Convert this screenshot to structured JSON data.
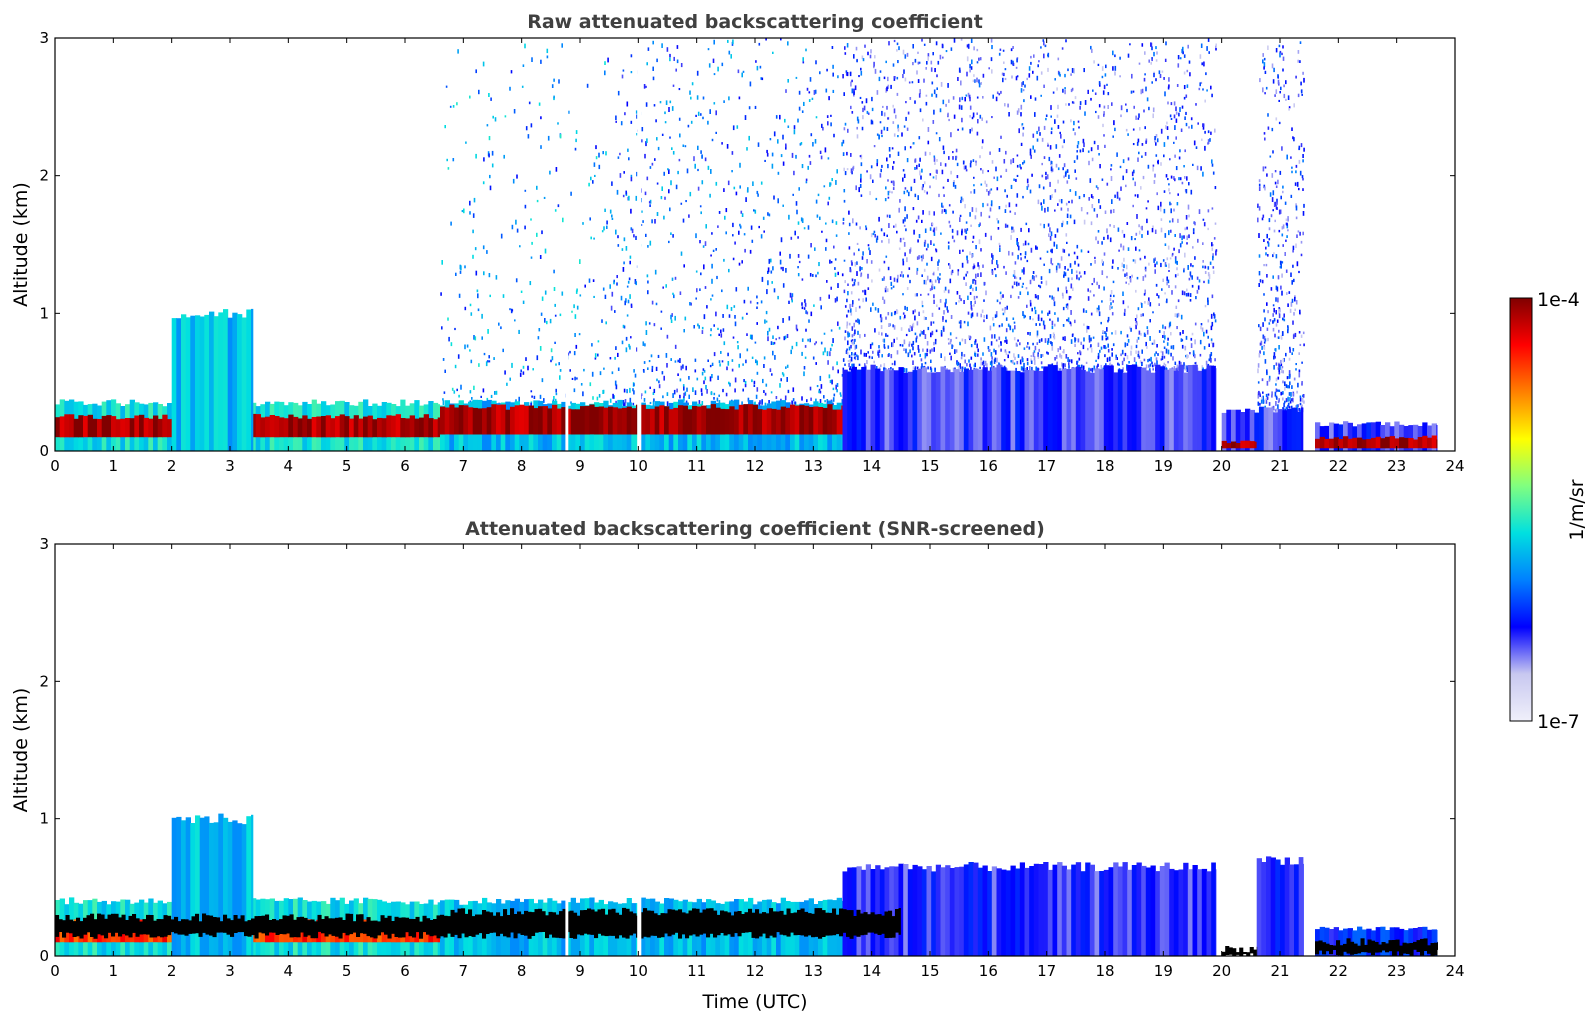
{
  "chart_data": [
    {
      "type": "heatmap",
      "title": "Raw attenuated backscattering coefficient",
      "xlabel": "",
      "ylabel": "Altitude (km)",
      "xlim": [
        0,
        24
      ],
      "ylim": [
        0,
        3
      ],
      "xticks": [
        "0",
        "1",
        "2",
        "3",
        "4",
        "5",
        "6",
        "7",
        "8",
        "9",
        "10",
        "11",
        "12",
        "13",
        "14",
        "15",
        "16",
        "17",
        "18",
        "19",
        "20",
        "21",
        "22",
        "23",
        "24"
      ],
      "yticks": [
        "0",
        "1",
        "2",
        "3"
      ],
      "layers": [
        {
          "x": [
            0,
            6.6
          ],
          "y": [
            0,
            0.35
          ],
          "level": 0.45
        },
        {
          "x": [
            0,
            6.6
          ],
          "y": [
            0.1,
            0.25
          ],
          "level": 0.97
        },
        {
          "x": [
            2.0,
            3.4
          ],
          "y": [
            0,
            1.0
          ],
          "level": 0.4
        },
        {
          "x": [
            6.6,
            13.5
          ],
          "y": [
            0,
            0.35
          ],
          "level": 0.4
        },
        {
          "x": [
            6.6,
            14.5
          ],
          "y": [
            0.12,
            0.32
          ],
          "level": 0.97
        },
        {
          "x": [
            13.5,
            19.9
          ],
          "y": [
            0,
            0.6
          ],
          "level": 0.2
        },
        {
          "x": [
            20.0,
            21.4
          ],
          "y": [
            0,
            0.3
          ],
          "level": 0.2
        },
        {
          "x": [
            21.6,
            23.7
          ],
          "y": [
            0,
            0.2
          ],
          "level": 0.2
        },
        {
          "x": [
            20.0,
            20.6
          ],
          "y": [
            0.02,
            0.06
          ],
          "level": 0.97
        },
        {
          "x": [
            21.6,
            23.7
          ],
          "y": [
            0.02,
            0.1
          ],
          "level": 0.97
        }
      ],
      "noise_regions": [
        {
          "x": [
            6.6,
            9.5
          ],
          "y": [
            0.35,
            3.0
          ],
          "density": 0.03,
          "level": 0.35
        },
        {
          "x": [
            9.5,
            13.5
          ],
          "y": [
            0.35,
            3.0
          ],
          "density": 0.06,
          "level": 0.3
        },
        {
          "x": [
            13.5,
            19.9
          ],
          "y": [
            0.6,
            3.0
          ],
          "density": 0.12,
          "level": 0.22
        },
        {
          "x": [
            20.6,
            21.4
          ],
          "y": [
            0.3,
            3.0
          ],
          "density": 0.15,
          "level": 0.22
        }
      ],
      "gaps": [
        {
          "x": [
            8.75,
            8.8
          ]
        },
        {
          "x": [
            9.98,
            10.05
          ]
        },
        {
          "x": [
            20.0,
            20.35
          ],
          "y": [
            0.3,
            3.0
          ]
        }
      ]
    },
    {
      "type": "heatmap",
      "title": "Attenuated backscattering coefficient (SNR-screened)",
      "xlabel": "Time (UTC)",
      "ylabel": "Altitude (km)",
      "xlim": [
        0,
        24
      ],
      "ylim": [
        0,
        3
      ],
      "xticks": [
        "0",
        "1",
        "2",
        "3",
        "4",
        "5",
        "6",
        "7",
        "8",
        "9",
        "10",
        "11",
        "12",
        "13",
        "14",
        "15",
        "16",
        "17",
        "18",
        "19",
        "20",
        "21",
        "22",
        "23",
        "24"
      ],
      "yticks": [
        "0",
        "1",
        "2",
        "3"
      ],
      "layers": [
        {
          "x": [
            0,
            6.6
          ],
          "y": [
            0,
            0.4
          ],
          "level": 0.45
        },
        {
          "x": [
            0,
            6.6
          ],
          "y": [
            0.1,
            0.25
          ],
          "level": 0.85
        },
        {
          "x": [
            2.0,
            3.4
          ],
          "y": [
            0,
            1.0
          ],
          "level": 0.4
        },
        {
          "x": [
            6.6,
            13.5
          ],
          "y": [
            0,
            0.4
          ],
          "level": 0.4
        },
        {
          "x": [
            13.5,
            19.9
          ],
          "y": [
            0,
            0.65
          ],
          "level": 0.2
        },
        {
          "x": [
            20.6,
            21.4
          ],
          "y": [
            0,
            0.7
          ],
          "level": 0.2
        },
        {
          "x": [
            21.6,
            23.7
          ],
          "y": [
            0,
            0.2
          ],
          "level": 0.25
        }
      ],
      "saturated_regions": [
        {
          "x": [
            0,
            6.6
          ],
          "y": [
            0.15,
            0.28
          ]
        },
        {
          "x": [
            6.6,
            14.5
          ],
          "y": [
            0.15,
            0.32
          ]
        },
        {
          "x": [
            21.6,
            23.7
          ],
          "y": [
            0.02,
            0.1
          ]
        },
        {
          "x": [
            20.0,
            20.6
          ],
          "y": [
            0.0,
            0.05
          ]
        }
      ],
      "gaps": [
        {
          "x": [
            8.75,
            8.8
          ]
        },
        {
          "x": [
            9.98,
            10.05
          ]
        }
      ]
    }
  ],
  "colorbar": {
    "label": "1/m/sr",
    "max_label": "1e-4",
    "min_label": "1e-7",
    "range": [
      1e-07,
      0.0001
    ],
    "scale": "log",
    "colormap": [
      "#f0f0fa",
      "#c8c8f0",
      "#0000ff",
      "#0080ff",
      "#00e0e0",
      "#80ff80",
      "#ffff00",
      "#ff8000",
      "#ff0000",
      "#800000"
    ]
  },
  "colors": {
    "saturated": "#000000",
    "title_text": "#404040"
  }
}
